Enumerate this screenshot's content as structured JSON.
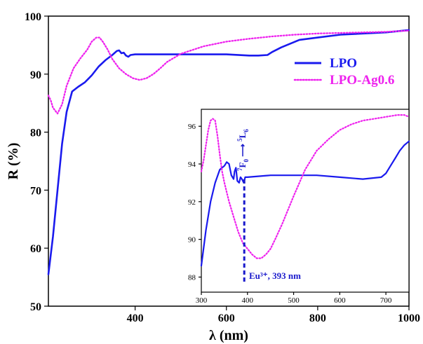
{
  "chart_data": [
    {
      "type": "line",
      "xlabel": "λ (nm)",
      "ylabel": "R (%)",
      "xlim": [
        210,
        1000
      ],
      "ylim": [
        50,
        100
      ],
      "xticks": [
        400,
        600,
        800,
        1000
      ],
      "yticks": [
        50,
        60,
        70,
        80,
        90,
        100
      ],
      "grid": false,
      "legend_position": "top-right",
      "series": [
        {
          "name": "LPO",
          "color": "#1a1aee",
          "style": "solid",
          "x": [
            210,
            220,
            230,
            240,
            250,
            262,
            275,
            290,
            305,
            320,
            335,
            350,
            360,
            365,
            370,
            375,
            380,
            385,
            390,
            400,
            450,
            500,
            550,
            600,
            650,
            670,
            690,
            700,
            720,
            760,
            800,
            850,
            900,
            950,
            1000
          ],
          "y": [
            55.5,
            62.0,
            70.0,
            78.0,
            83.5,
            87.0,
            87.8,
            88.6,
            89.8,
            91.3,
            92.4,
            93.3,
            94.0,
            94.1,
            93.6,
            93.7,
            93.2,
            93.0,
            93.3,
            93.4,
            93.4,
            93.4,
            93.4,
            93.4,
            93.2,
            93.2,
            93.3,
            93.8,
            94.6,
            95.9,
            96.3,
            96.8,
            97.0,
            97.2,
            97.6
          ]
        },
        {
          "name": "LPO-Ag0.6",
          "color": "#ee22ee",
          "style": "dotted",
          "x": [
            210,
            215,
            220,
            230,
            240,
            250,
            265,
            280,
            295,
            305,
            315,
            322,
            330,
            340,
            350,
            365,
            380,
            395,
            410,
            425,
            440,
            455,
            470,
            500,
            550,
            600,
            650,
            700,
            750,
            800,
            850,
            900,
            950,
            1000
          ],
          "y": [
            86.3,
            85.5,
            84.2,
            83.2,
            84.8,
            88.0,
            91.0,
            92.7,
            94.2,
            95.6,
            96.3,
            96.3,
            95.5,
            94.2,
            92.6,
            91.0,
            90.0,
            89.3,
            89.0,
            89.3,
            90.0,
            91.0,
            92.1,
            93.5,
            94.8,
            95.6,
            96.1,
            96.5,
            96.8,
            97.0,
            97.1,
            97.2,
            97.3,
            97.5
          ]
        }
      ]
    },
    {
      "type": "line",
      "xlabel": "",
      "ylabel": "",
      "xlim": [
        300,
        750
      ],
      "ylim": [
        87.2,
        96.9
      ],
      "xticks": [
        300,
        400,
        500,
        600,
        700
      ],
      "yticks": [
        88,
        90,
        92,
        94,
        96
      ],
      "grid": false,
      "series": [
        {
          "color": "#1a1aee",
          "style": "solid",
          "x": [
            300,
            310,
            320,
            330,
            340,
            350,
            355,
            360,
            365,
            370,
            372,
            375,
            378,
            382,
            385,
            388,
            392,
            395,
            400,
            450,
            500,
            550,
            600,
            650,
            690,
            700,
            710,
            720,
            730,
            740,
            750
          ],
          "y": [
            88.6,
            90.5,
            92.0,
            93.0,
            93.7,
            93.9,
            94.1,
            94.0,
            93.4,
            93.2,
            93.6,
            93.8,
            93.1,
            93.0,
            93.3,
            93.2,
            93.0,
            93.3,
            93.3,
            93.4,
            93.4,
            93.4,
            93.3,
            93.2,
            93.3,
            93.5,
            93.9,
            94.3,
            94.7,
            95.0,
            95.2
          ]
        },
        {
          "color": "#ee22ee",
          "style": "dotted",
          "x": [
            300,
            305,
            310,
            315,
            320,
            325,
            330,
            335,
            340,
            345,
            350,
            360,
            370,
            380,
            390,
            400,
            410,
            420,
            430,
            440,
            450,
            460,
            475,
            500,
            525,
            550,
            575,
            600,
            625,
            650,
            675,
            700,
            725,
            740,
            750
          ],
          "y": [
            93.6,
            94.2,
            95.0,
            95.8,
            96.3,
            96.4,
            96.3,
            95.5,
            94.5,
            93.6,
            93.0,
            92.0,
            91.2,
            90.4,
            89.8,
            89.5,
            89.2,
            89.0,
            89.0,
            89.2,
            89.5,
            90.0,
            90.8,
            92.3,
            93.7,
            94.7,
            95.3,
            95.8,
            96.1,
            96.3,
            96.4,
            96.5,
            96.6,
            96.6,
            96.5
          ]
        }
      ],
      "annotations": [
        {
          "text": "Eu³⁺, 393 nm",
          "x": 393
        },
        {
          "transition": "⁷F₀→⁵L₆",
          "x": 393
        }
      ]
    }
  ],
  "legend": {
    "lpo": "LPO",
    "ag": "LPO-Ag0.6"
  },
  "annotation": {
    "eu_label": "Eu³⁺, 393 nm",
    "transition_from_sup": "7",
    "transition_from": "F",
    "transition_from_sub": "0",
    "transition_to_sup": "5",
    "transition_to": "L",
    "transition_to_sub": "6"
  }
}
